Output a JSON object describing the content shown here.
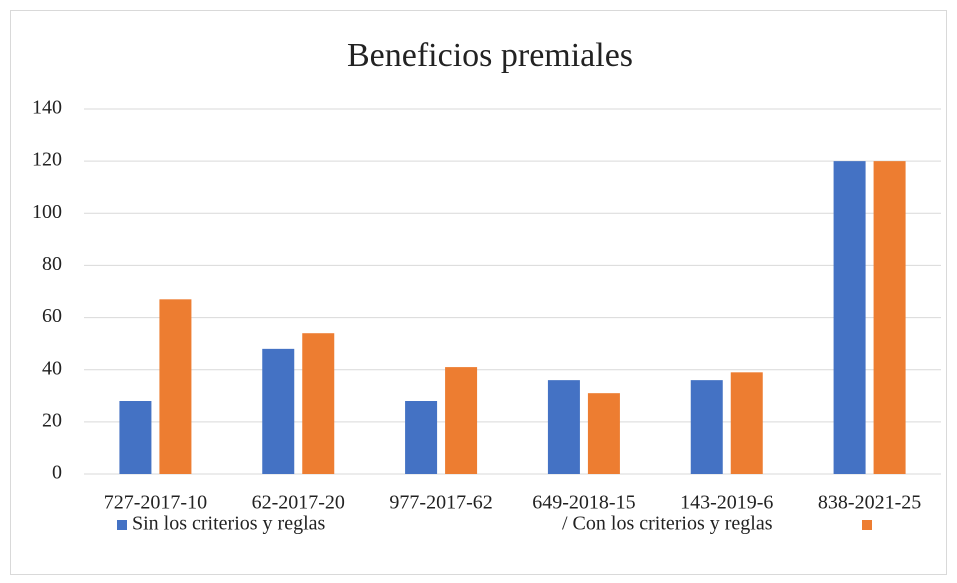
{
  "chart_data": {
    "type": "bar",
    "title": "Beneficios premiales",
    "categories": [
      "727-2017-10",
      "62-2017-20",
      "977-2017-62",
      "649-2018-15",
      "143-2019-6",
      "838-2021-25"
    ],
    "series": [
      {
        "name": "Sin los criterios y reglas",
        "color": "#4472c4",
        "values": [
          28,
          48,
          28,
          36,
          36,
          120
        ]
      },
      {
        "name": "/ Con los criterios y reglas",
        "color": "#ed7d31",
        "values": [
          67,
          54,
          41,
          31,
          39,
          120
        ]
      }
    ],
    "ylim": [
      0,
      140
    ],
    "yticks": [
      0,
      20,
      40,
      60,
      80,
      100,
      120,
      140
    ],
    "grid": true,
    "legend": "bottom"
  }
}
